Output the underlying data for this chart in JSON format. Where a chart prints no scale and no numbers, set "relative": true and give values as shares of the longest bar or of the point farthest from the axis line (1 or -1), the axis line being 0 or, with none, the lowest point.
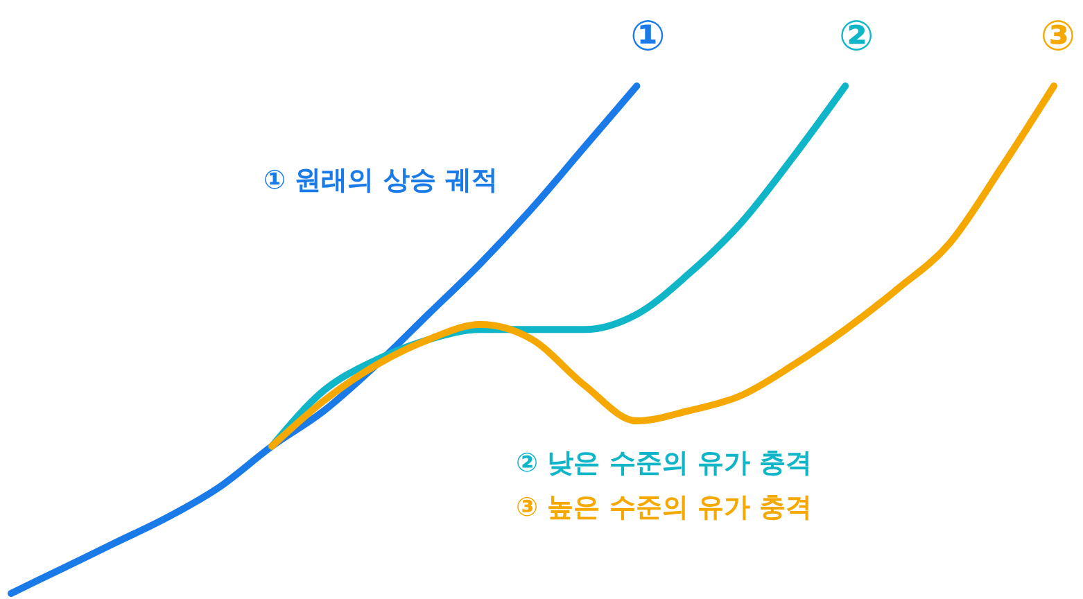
{
  "chart_data": {
    "type": "line",
    "relative": true,
    "categories": [
      null,
      null,
      null,
      null,
      null,
      null,
      null,
      null,
      null,
      null,
      null,
      null,
      null,
      null,
      null,
      null,
      null,
      null,
      null,
      null,
      null
    ],
    "series": [
      {
        "name": "① 원래의 상승 궤적",
        "color": "#1a7be8",
        "values": [
          0,
          0.05,
          0.1,
          0.15,
          0.21,
          0.29,
          0.36,
          0.45,
          0.55,
          0.65,
          0.76,
          0.88,
          1,
          null,
          null,
          null,
          null,
          null,
          null,
          null,
          null
        ]
      },
      {
        "name": "② 낮은 수준의 유가 충격",
        "color": "#10b5c8",
        "values": [
          null,
          null,
          null,
          null,
          null,
          0.29,
          0.4,
          0.46,
          0.5,
          0.52,
          0.52,
          0.52,
          0.55,
          0.63,
          0.73,
          0.86,
          1,
          null,
          null,
          null,
          null
        ]
      },
      {
        "name": "③ 높은 수준의 유가 충격",
        "color": "#f5a800",
        "values": [
          null,
          null,
          null,
          null,
          null,
          0.29,
          0.38,
          0.45,
          0.5,
          0.53,
          0.5,
          0.41,
          0.34,
          0.36,
          0.39,
          0.45,
          0.52,
          0.6,
          0.69,
          0.84,
          1
        ]
      }
    ],
    "annotations": [
      "①",
      "②",
      "③"
    ]
  }
}
